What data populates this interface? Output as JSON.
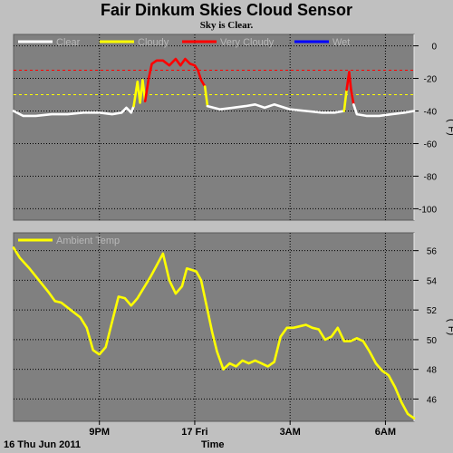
{
  "title": "Fair Dinkum Skies Cloud Sensor",
  "subtitle": "Sky is Clear.",
  "footer": {
    "date_label": "16 Thu Jun 2011",
    "xlabel": "Time"
  },
  "colors": {
    "panel_bg": "#808080",
    "page_bg": "#c0c0c0",
    "clear": "#ffffff",
    "cloudy": "#ffff00",
    "very_cloudy": "#ff0000",
    "wet": "#0000ff",
    "ambient": "#ffff00"
  },
  "chart_data": [
    {
      "type": "line",
      "panel": "sky",
      "ylabel": "(°F)",
      "ylim": [
        -107,
        7
      ],
      "y_ticks": [
        "0",
        "-20",
        "-40",
        "-60",
        "-80",
        "-100"
      ],
      "y_tick_values": [
        0,
        -20,
        -40,
        -60,
        -80,
        -100
      ],
      "x_ticks": [
        "9PM",
        "17 Fri",
        "3AM",
        "6AM"
      ],
      "x_tick_values": [
        21,
        24,
        27,
        30
      ],
      "xlim": [
        18.3,
        30.9
      ],
      "legend": [
        "Clear",
        "Cloudy",
        "Very Cloudy",
        "Wet"
      ],
      "legend_placement": "top-left",
      "thresholds": [
        {
          "value": -15,
          "color": "#ff0000"
        },
        {
          "value": -30,
          "color": "#ffff00"
        }
      ],
      "series": [
        {
          "name": "Clear",
          "color": "#ffffff",
          "x": [
            18.3,
            18.6,
            19.0,
            19.5,
            20.0,
            20.5,
            21.0,
            21.4,
            21.7,
            21.85,
            22.0,
            22.08
          ],
          "values": [
            -40,
            -43,
            -43,
            -42,
            -42,
            -41,
            -41,
            -42,
            -41,
            -38,
            -41,
            -37
          ]
        },
        {
          "name": "Cloudy",
          "color": "#ffff00",
          "x": [
            22.08,
            22.2,
            22.28,
            22.36,
            22.44
          ],
          "values": [
            -37,
            -22,
            -35,
            -21,
            -34
          ]
        },
        {
          "name": "Very Cloudy",
          "color": "#ff0000",
          "x": [
            22.44,
            22.55,
            22.65,
            22.8,
            23.0,
            23.2,
            23.4,
            23.55,
            23.7,
            23.85,
            24.0,
            24.1,
            24.2,
            24.32
          ],
          "values": [
            -34,
            -20,
            -11,
            -9,
            -9,
            -12,
            -8,
            -12,
            -8,
            -11,
            -12,
            -15,
            -21,
            -25
          ]
        },
        {
          "name": "Cloudy",
          "color": "#ffff00",
          "x": [
            24.32,
            24.4
          ],
          "values": [
            -25,
            -37
          ]
        },
        {
          "name": "Clear",
          "color": "#ffffff",
          "x": [
            24.4,
            24.8,
            25.2,
            25.6,
            25.9,
            26.2,
            26.5,
            27.0,
            27.5,
            28.0,
            28.4,
            28.7
          ],
          "values": [
            -37,
            -39,
            -38,
            -37,
            -36,
            -38,
            -36,
            -39,
            -40,
            -41,
            -41,
            -40
          ]
        },
        {
          "name": "Cloudy",
          "color": "#ffff00",
          "x": [
            28.7,
            28.78
          ],
          "values": [
            -40,
            -27
          ]
        },
        {
          "name": "Very Cloudy",
          "color": "#ff0000",
          "x": [
            28.78,
            28.86,
            28.92,
            29.0
          ],
          "values": [
            -27,
            -16,
            -27,
            -36
          ]
        },
        {
          "name": "Clear",
          "color": "#ffffff",
          "x": [
            29.0,
            29.1,
            29.4,
            29.8,
            30.2,
            30.6,
            30.9
          ],
          "values": [
            -36,
            -42,
            -43,
            -43,
            -42,
            -41,
            -40
          ]
        }
      ]
    },
    {
      "type": "line",
      "panel": "ambient",
      "ylabel": "(°F)",
      "ylim": [
        44.5,
        57.2
      ],
      "y_ticks": [
        "56",
        "54",
        "52",
        "50",
        "48",
        "46"
      ],
      "y_tick_values": [
        56,
        54,
        52,
        50,
        48,
        46
      ],
      "x_ticks": [
        "9PM",
        "17 Fri",
        "3AM",
        "6AM"
      ],
      "x_tick_values": [
        21,
        24,
        27,
        30
      ],
      "xlim": [
        18.3,
        30.9
      ],
      "legend": [
        "Ambient Temp"
      ],
      "legend_placement": "top-left",
      "series": [
        {
          "name": "Ambient Temp",
          "color": "#ffff00",
          "x": [
            18.3,
            18.5,
            18.8,
            19.1,
            19.4,
            19.6,
            19.8,
            20.1,
            20.4,
            20.6,
            20.8,
            21.0,
            21.2,
            21.4,
            21.6,
            21.8,
            22.0,
            22.2,
            22.4,
            22.6,
            22.8,
            23.0,
            23.2,
            23.4,
            23.6,
            23.75,
            23.9,
            24.05,
            24.2,
            24.4,
            24.55,
            24.7,
            24.9,
            25.1,
            25.3,
            25.5,
            25.7,
            25.9,
            26.1,
            26.3,
            26.5,
            26.7,
            26.9,
            27.1,
            27.3,
            27.5,
            27.7,
            27.9,
            28.1,
            28.3,
            28.5,
            28.7,
            28.9,
            29.1,
            29.3,
            29.5,
            29.7,
            29.9,
            30.1,
            30.3,
            30.5,
            30.7,
            30.9
          ],
          "values": [
            56.2,
            55.5,
            54.8,
            54.0,
            53.2,
            52.6,
            52.5,
            52.0,
            51.5,
            50.8,
            49.3,
            49.0,
            49.5,
            51.2,
            52.9,
            52.8,
            52.3,
            52.8,
            53.5,
            54.2,
            55.0,
            55.8,
            54.0,
            53.1,
            53.6,
            54.8,
            54.7,
            54.6,
            54.0,
            52.0,
            50.5,
            49.2,
            48.0,
            48.4,
            48.2,
            48.6,
            48.4,
            48.6,
            48.4,
            48.2,
            48.5,
            50.2,
            50.8,
            50.8,
            50.9,
            51.0,
            50.8,
            50.7,
            50.0,
            50.2,
            50.8,
            49.9,
            49.9,
            50.1,
            49.9,
            49.2,
            48.4,
            47.9,
            47.6,
            46.8,
            45.8,
            45.0,
            44.7
          ]
        }
      ]
    }
  ]
}
